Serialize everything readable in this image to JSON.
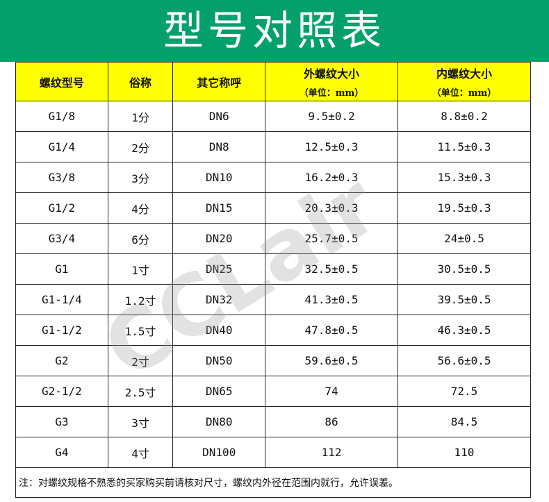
{
  "title": "型号对照表",
  "watermark": "CCLair",
  "headers": [
    {
      "label": "螺纹型号",
      "sub": ""
    },
    {
      "label": "俗称",
      "sub": ""
    },
    {
      "label": "其它称呼",
      "sub": ""
    },
    {
      "label": "外螺纹大小",
      "sub": "（单位：mm）"
    },
    {
      "label": "内螺纹大小",
      "sub": "（单位：mm）"
    }
  ],
  "rows": [
    [
      "G1/8",
      "1分",
      "DN6",
      "9.5±0.2",
      "8.8±0.2"
    ],
    [
      "G1/4",
      "2分",
      "DN8",
      "12.5±0.3",
      "11.5±0.3"
    ],
    [
      "G3/8",
      "3分",
      "DN10",
      "16.2±0.3",
      "15.3±0.3"
    ],
    [
      "G1/2",
      "4分",
      "DN15",
      "20.3±0.3",
      "19.5±0.3"
    ],
    [
      "G3/4",
      "6分",
      "DN20",
      "25.7±0.5",
      "24±0.5"
    ],
    [
      "G1",
      "1寸",
      "DN25",
      "32.5±0.5",
      "30.5±0.5"
    ],
    [
      "G1-1/4",
      "1.2寸",
      "DN32",
      "41.3±0.5",
      "39.5±0.5"
    ],
    [
      "G1-1/2",
      "1.5寸",
      "DN40",
      "47.8±0.5",
      "46.3±0.5"
    ],
    [
      "G2",
      "2寸",
      "DN50",
      "59.6±0.5",
      "56.6±0.5"
    ],
    [
      "G2-1/2",
      "2.5寸",
      "DN65",
      "74",
      "72.5"
    ],
    [
      "G3",
      "3寸",
      "DN80",
      "86",
      "84.5"
    ],
    [
      "G4",
      "4寸",
      "DN100",
      "112",
      "110"
    ]
  ],
  "note": "注：对螺纹规格不熟悉的买家购买前请核对尺寸，螺纹内外径在范围内就行，允许误差。",
  "colors": {
    "banner": "#03a06c",
    "header": "#ffff00"
  }
}
